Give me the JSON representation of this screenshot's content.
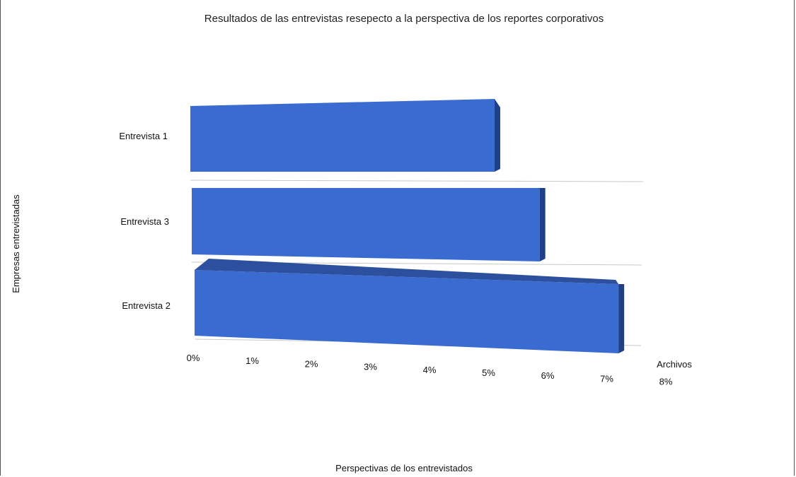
{
  "chart_data": {
    "type": "bar",
    "orientation": "horizontal",
    "style": "3d",
    "title": "Resultados de las entrevistas resepecto a la perspectiva de los reportes corporativos",
    "xlabel": "Perspectivas de los entrevistados",
    "ylabel": "Empresas entrevistadas",
    "series_label": "Archivos",
    "categories": [
      "Entrevista 1",
      "Entrevista 3",
      "Entrevista 2"
    ],
    "values": [
      5.4,
      6.2,
      7.6
    ],
    "value_unit": "%",
    "xlim": [
      0,
      8
    ],
    "ticks": [
      "0%",
      "1%",
      "2%",
      "3%",
      "4%",
      "5%",
      "6%",
      "7%",
      "8%"
    ],
    "bar_color": "#3a6bd1",
    "bar_top_color": "#2c4f9e",
    "bar_side_color": "#1f3f86",
    "grid": true
  }
}
